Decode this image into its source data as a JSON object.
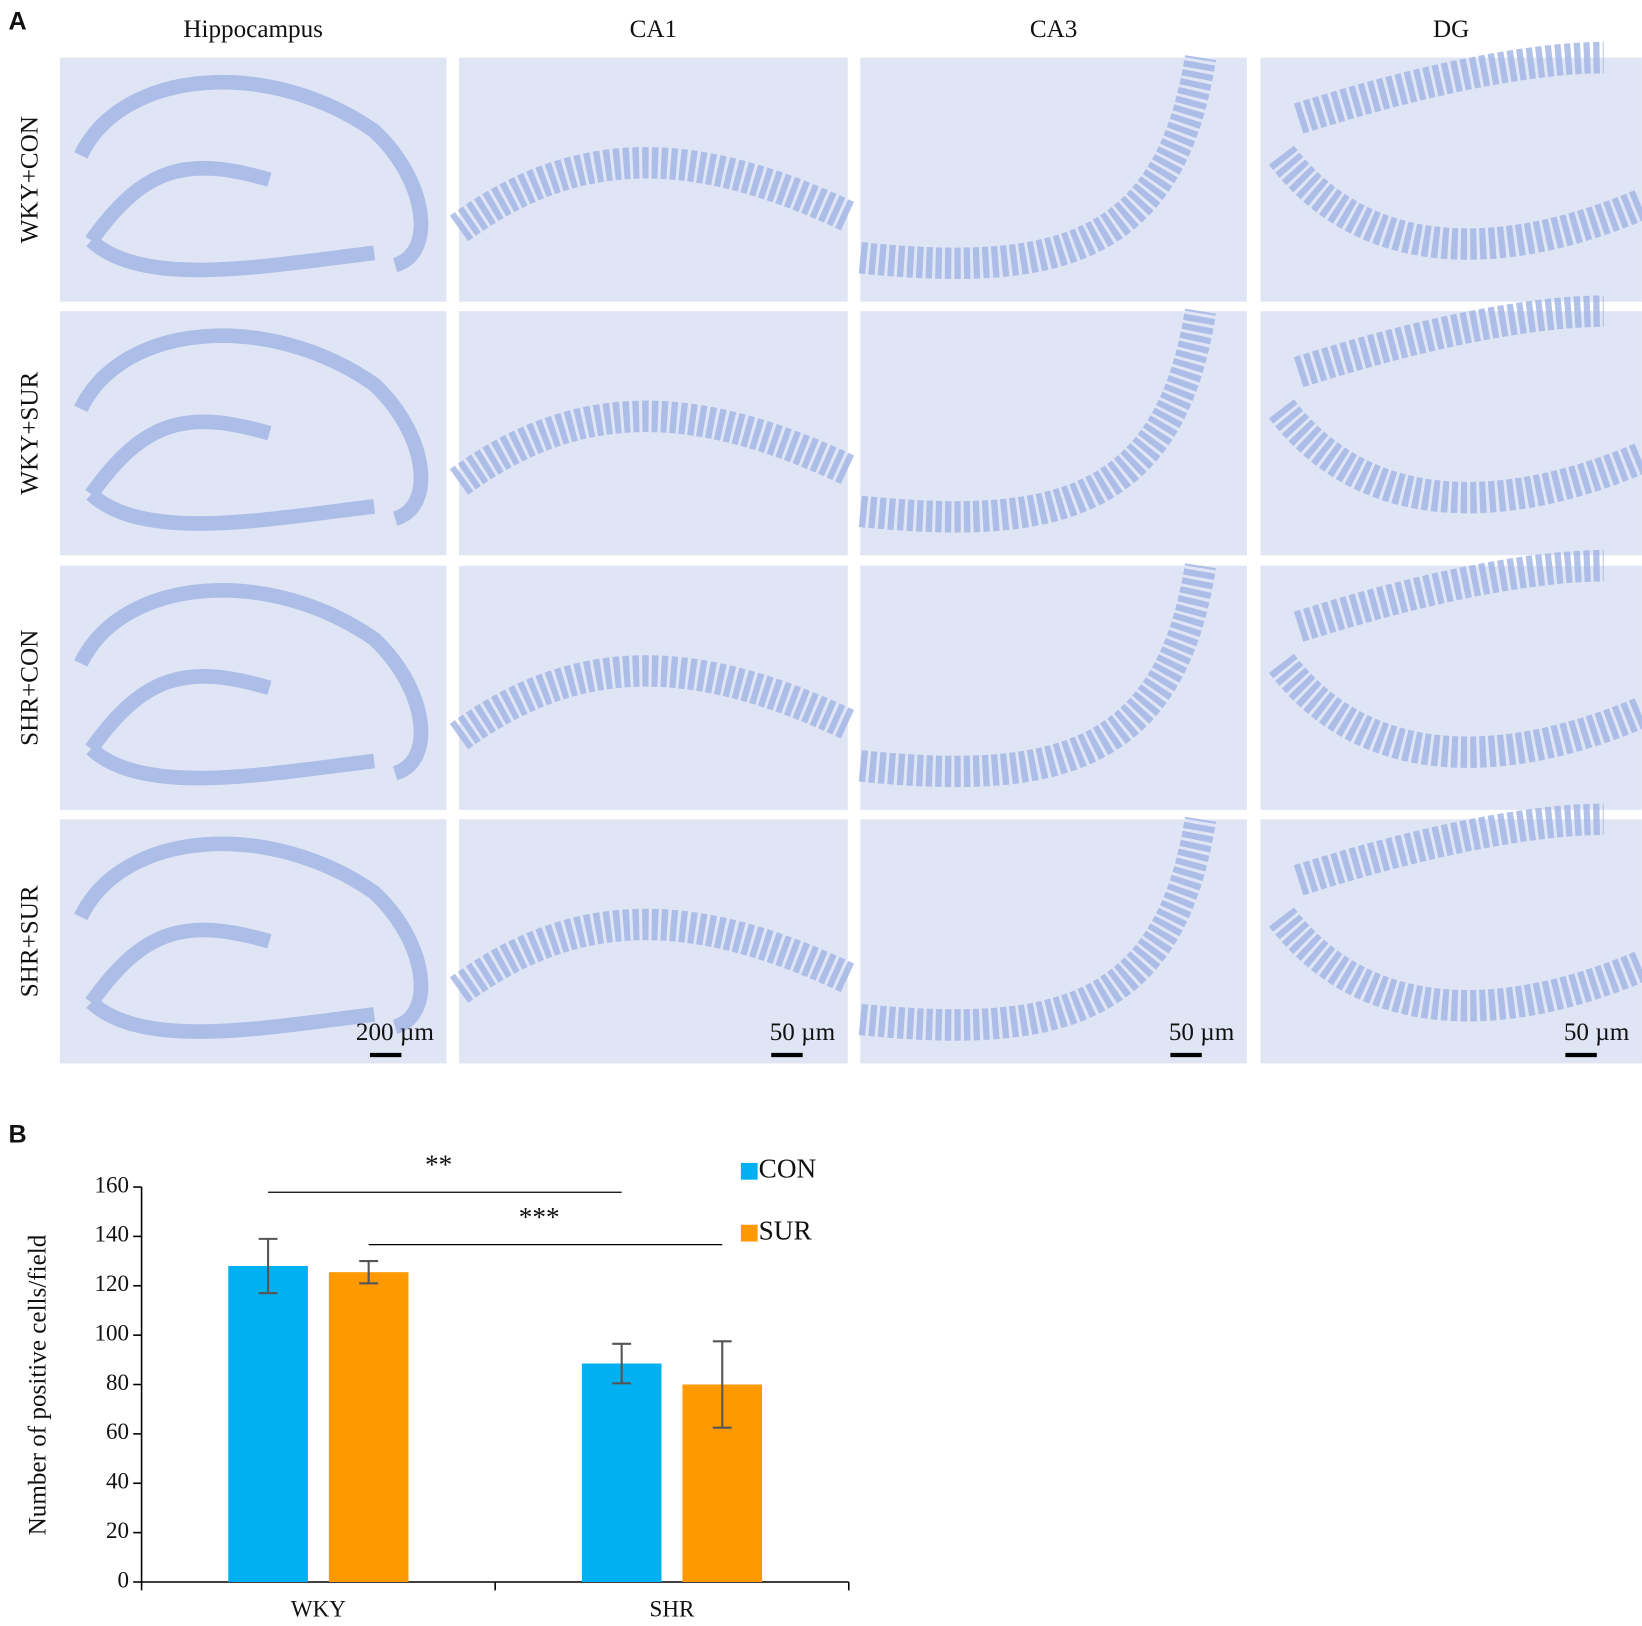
{
  "panel_a": {
    "label": "A",
    "columns": [
      "Hippocampus",
      "CA1",
      "CA3",
      "DG"
    ],
    "rows": [
      "WKY+CON",
      "WKY+SUR",
      "SHR+CON",
      "SHR+SUR"
    ],
    "scale_bars": [
      "200 µm",
      "50 µm",
      "50 µm",
      "50 µm"
    ]
  },
  "chart_data": {
    "type": "bar",
    "panel_label": "B",
    "y_label": "Number of positive cells/field",
    "categories": [
      "WKY",
      "SHR"
    ],
    "series": [
      {
        "name": "CON",
        "color": "#00b0f0",
        "values": [
          128,
          88.5
        ],
        "errors": [
          11,
          8
        ]
      },
      {
        "name": "SUR",
        "color": "#ff9900",
        "values": [
          125.5,
          80
        ],
        "errors": [
          4.5,
          17.5
        ]
      }
    ],
    "ylim": [
      0,
      160
    ],
    "yticks": [
      0,
      20,
      40,
      60,
      80,
      100,
      120,
      140,
      160
    ],
    "annotations": [
      "**",
      "***"
    ]
  }
}
